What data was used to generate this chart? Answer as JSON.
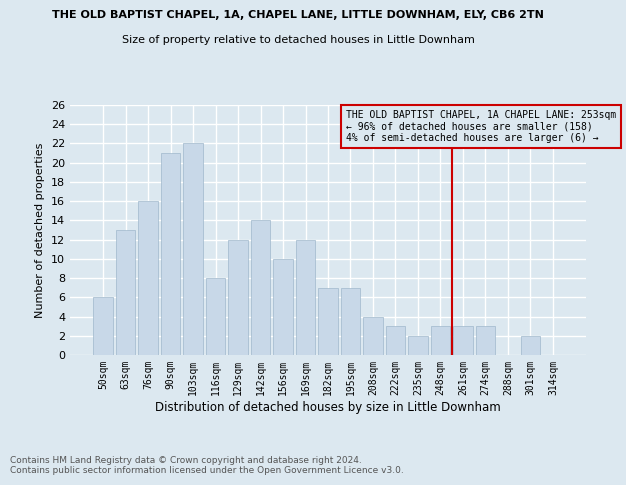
{
  "title": "THE OLD BAPTIST CHAPEL, 1A, CHAPEL LANE, LITTLE DOWNHAM, ELY, CB6 2TN",
  "subtitle": "Size of property relative to detached houses in Little Downham",
  "xlabel": "Distribution of detached houses by size in Little Downham",
  "ylabel": "Number of detached properties",
  "bar_labels": [
    "50sqm",
    "63sqm",
    "76sqm",
    "90sqm",
    "103sqm",
    "116sqm",
    "129sqm",
    "142sqm",
    "156sqm",
    "169sqm",
    "182sqm",
    "195sqm",
    "208sqm",
    "222sqm",
    "235sqm",
    "248sqm",
    "261sqm",
    "274sqm",
    "288sqm",
    "301sqm",
    "314sqm"
  ],
  "bar_values": [
    6,
    13,
    16,
    21,
    22,
    8,
    12,
    14,
    10,
    12,
    7,
    7,
    4,
    3,
    2,
    3,
    3,
    3,
    0,
    2,
    0
  ],
  "bar_color": "#c8d8e8",
  "bar_edgecolor": "#a0b8cc",
  "ylim": [
    0,
    26
  ],
  "yticks": [
    0,
    2,
    4,
    6,
    8,
    10,
    12,
    14,
    16,
    18,
    20,
    22,
    24,
    26
  ],
  "vline_x": 15.5,
  "vline_color": "#cc0000",
  "annotation_text": "THE OLD BAPTIST CHAPEL, 1A CHAPEL LANE: 253sqm\n← 96% of detached houses are smaller (158)\n4% of semi-detached houses are larger (6) →",
  "footer_text": "Contains HM Land Registry data © Crown copyright and database right 2024.\nContains public sector information licensed under the Open Government Licence v3.0.",
  "background_color": "#dce8f0",
  "grid_color": "#ffffff"
}
